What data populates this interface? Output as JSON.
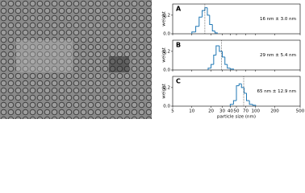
{
  "chart_data": [
    {
      "type": "histogram",
      "panel_label": "A",
      "annotation": "16 nm ± 3.0 nm",
      "ylabel": "weight",
      "bins": [
        10,
        11.5,
        13,
        14.5,
        16,
        17.5,
        19,
        21,
        23,
        25
      ],
      "values": [
        0.02,
        0.08,
        0.18,
        0.25,
        0.28,
        0.2,
        0.1,
        0.03,
        0.01
      ],
      "mean": 16,
      "color": "#1f77b4",
      "xscale": "log",
      "xlim": [
        5,
        500
      ],
      "xticks": [
        5,
        10,
        20,
        30,
        40,
        50,
        70,
        100,
        200,
        500
      ],
      "ylim": [
        0,
        0.32
      ],
      "yticks": [
        {
          "value": 0,
          "label": "0.0"
        },
        {
          "value": 0.2,
          "label": "0.2"
        }
      ]
    },
    {
      "type": "histogram",
      "panel_label": "B",
      "annotation": "29 nm ± 5.4 nm",
      "ylabel": "weight",
      "bins": [
        18,
        20,
        22,
        24,
        27,
        30,
        33,
        36,
        40,
        45
      ],
      "values": [
        0.02,
        0.06,
        0.16,
        0.26,
        0.2,
        0.14,
        0.06,
        0.02,
        0.01
      ],
      "mean": 29,
      "color": "#1f77b4",
      "xscale": "log",
      "xlim": [
        5,
        500
      ],
      "xticks": [
        5,
        10,
        20,
        30,
        40,
        50,
        70,
        100,
        200,
        500
      ],
      "ylim": [
        0,
        0.32
      ],
      "yticks": [
        {
          "value": 0,
          "label": "0.0"
        },
        {
          "value": 0.2,
          "label": "0.2"
        }
      ]
    },
    {
      "type": "histogram",
      "panel_label": "C",
      "annotation": "65 nm ± 12.9 nm",
      "ylabel": "weight",
      "xlabel": "particle size (nm)",
      "bins": [
        40,
        45,
        50,
        55,
        60,
        66,
        72,
        80,
        90,
        100
      ],
      "values": [
        0.02,
        0.06,
        0.22,
        0.24,
        0.2,
        0.14,
        0.06,
        0.02,
        0.01
      ],
      "mean": 65,
      "color": "#1f77b4",
      "xscale": "log",
      "xlim": [
        5,
        500
      ],
      "xticks": [
        5,
        10,
        20,
        30,
        40,
        50,
        70,
        100,
        200,
        500
      ],
      "ylim": [
        0,
        0.32
      ],
      "yticks": [
        {
          "value": 0,
          "label": "0.0"
        },
        {
          "value": 0.2,
          "label": "0.2"
        }
      ]
    }
  ]
}
